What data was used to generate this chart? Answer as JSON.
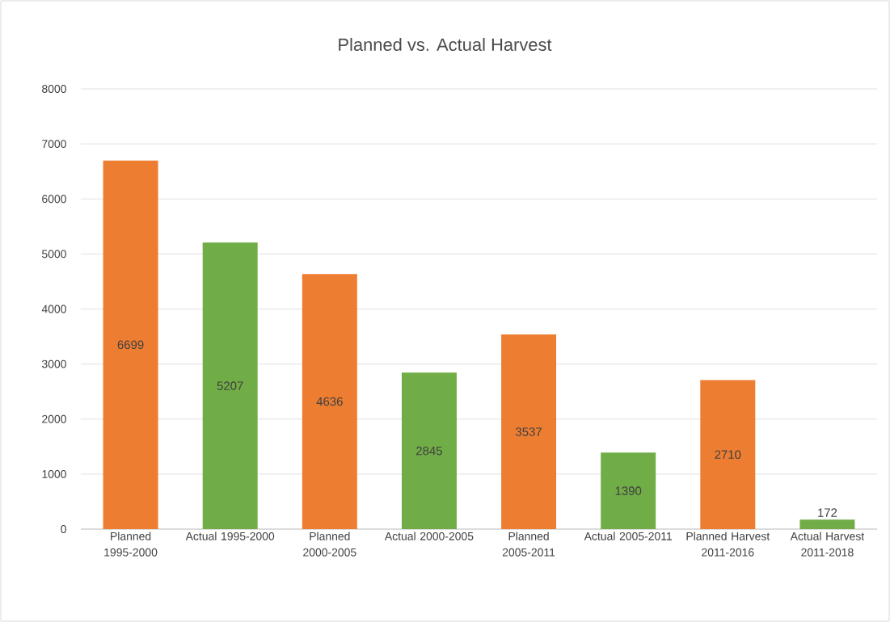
{
  "chart_data": {
    "type": "bar",
    "title": "Planned vs. Actual Harvest",
    "categories": [
      "Planned 1995-2000",
      "Actual 1995-2000",
      "Planned 2000-2005",
      "Actual 2000-2005",
      "Planned 2005-2011",
      "Actual 2005-2011",
      "Planned Harvest 2011-2016",
      "Actual Harvest 2011-2018"
    ],
    "values": [
      6699,
      5207,
      4636,
      2845,
      3537,
      1390,
      2710,
      172
    ],
    "colors": [
      "#ed7d31",
      "#70ad47",
      "#ed7d31",
      "#70ad47",
      "#ed7d31",
      "#70ad47",
      "#ed7d31",
      "#70ad47"
    ],
    "ylim": [
      0,
      8000
    ],
    "yticks": [
      0,
      1000,
      2000,
      3000,
      4000,
      5000,
      6000,
      7000,
      8000
    ],
    "grid": "y",
    "data_labels": true
  }
}
